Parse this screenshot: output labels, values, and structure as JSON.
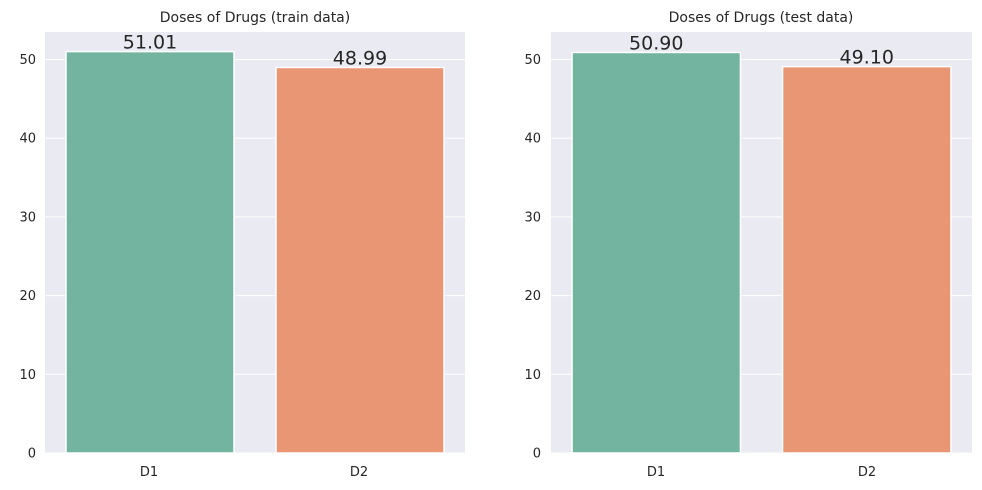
{
  "chart_data": [
    {
      "type": "bar",
      "title": "Doses of Drugs (train data)",
      "categories": [
        "D1",
        "D2"
      ],
      "values": [
        51.01,
        48.99
      ],
      "data_labels": [
        "51.01",
        "48.99"
      ],
      "ylim": [
        0,
        53.5
      ],
      "yticks": [
        "0",
        "10",
        "20",
        "30",
        "40",
        "50"
      ],
      "grid": true,
      "colors": [
        "#73b4a0",
        "#e89674"
      ]
    },
    {
      "type": "bar",
      "title": "Doses of Drugs (test data)",
      "categories": [
        "D1",
        "D2"
      ],
      "values": [
        50.9,
        49.1
      ],
      "data_labels": [
        "50.90",
        "49.10"
      ],
      "ylim": [
        0,
        53.5
      ],
      "yticks": [
        "0",
        "10",
        "20",
        "30",
        "40",
        "50"
      ],
      "grid": true,
      "colors": [
        "#73b4a0",
        "#e89674"
      ]
    }
  ],
  "style": {
    "plot_background": "#eaeaf2",
    "grid_color": "#ffffff",
    "text_color": "#262626"
  }
}
